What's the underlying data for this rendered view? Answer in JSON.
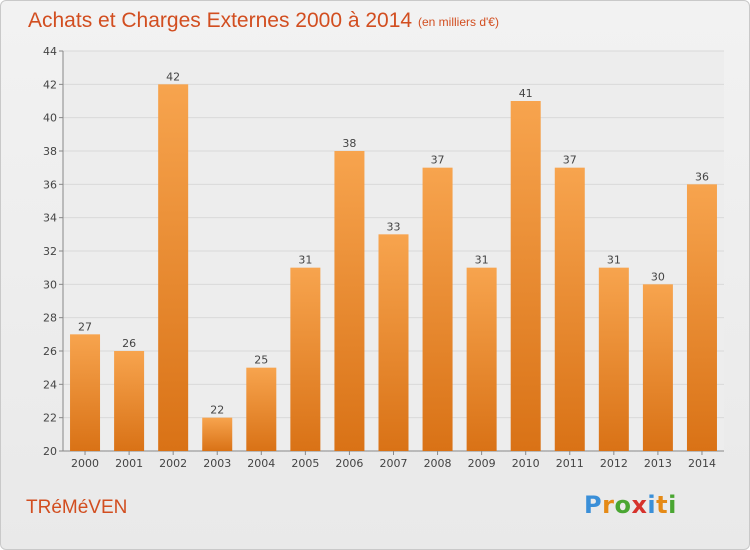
{
  "chart_data": {
    "type": "bar",
    "title": "Achats et Charges Externes 2000 à 2014",
    "unit": "(en milliers d'€)",
    "categories": [
      "2000",
      "2001",
      "2002",
      "2003",
      "2004",
      "2005",
      "2006",
      "2007",
      "2008",
      "2009",
      "2010",
      "2011",
      "2012",
      "2013",
      "2014"
    ],
    "values": [
      27,
      26,
      42,
      22,
      25,
      31,
      38,
      33,
      37,
      31,
      41,
      37,
      31,
      30,
      36
    ],
    "ylim": [
      20,
      44
    ],
    "yticks": [
      20,
      22,
      24,
      26,
      28,
      30,
      32,
      34,
      36,
      38,
      40,
      42,
      44
    ],
    "grid": true,
    "bar_color_top": "#f7a44e",
    "bar_color_bottom": "#d97216"
  },
  "footer": {
    "commune": "TRéMéVEN",
    "logo_letters": [
      "P",
      "r",
      "o",
      "x",
      "i",
      "t",
      "i"
    ]
  },
  "colors": {
    "title": "#d24e20",
    "grid": "#d9d9d9"
  }
}
